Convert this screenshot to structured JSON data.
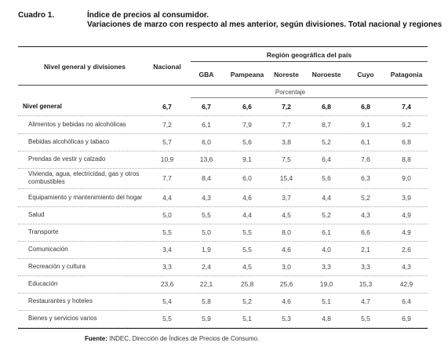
{
  "cuadro": "Cuadro 1.",
  "title_line1": "Índice de precios al consumidor.",
  "title_line2": "Variaciones de marzo con respecto al mes anterior, según divisiones. Total nacional y regiones",
  "header": {
    "divisions": "Nivel general y divisiones",
    "nacional": "Nacional",
    "region_group": "Región geográfica del país",
    "regions": [
      "GBA",
      "Pampeana",
      "Noreste",
      "Noroeste",
      "Cuyo",
      "Patagonia"
    ],
    "unit": "Porcentaje"
  },
  "rows": [
    {
      "label": "Nivel general",
      "values": [
        "6,7",
        "6,7",
        "6,6",
        "7,2",
        "6,8",
        "6,8",
        "7,4"
      ]
    },
    {
      "label": "Alimentos y bebidas no alcohólicas",
      "values": [
        "7,2",
        "6,1",
        "7,9",
        "7,7",
        "8,7",
        "9,1",
        "9,2"
      ]
    },
    {
      "label": "Bebidas alcohólicas y tabaco",
      "values": [
        "5,7",
        "6,0",
        "5,6",
        "3,8",
        "5,2",
        "6,1",
        "6,8"
      ]
    },
    {
      "label": "Prendas de vestir y calzado",
      "values": [
        "10,9",
        "13,6",
        "9,1",
        "7,5",
        "6,4",
        "7,6",
        "8,8"
      ]
    },
    {
      "label": "Vivienda, agua, electricidad, gas y otros combustibles",
      "values": [
        "7,7",
        "8,4",
        "6,0",
        "15,4",
        "5,6",
        "6,3",
        "9,0"
      ]
    },
    {
      "label": "Equipamiento y mantenimiento del hogar",
      "values": [
        "4,4",
        "4,3",
        "4,6",
        "3,7",
        "4,4",
        "5,2",
        "3,9"
      ]
    },
    {
      "label": "Salud",
      "values": [
        "5,0",
        "5,5",
        "4,4",
        "4,5",
        "5,2",
        "4,3",
        "4,9"
      ]
    },
    {
      "label": "Transporte",
      "values": [
        "5,5",
        "5,0",
        "5,5",
        "8,0",
        "6,1",
        "6,6",
        "4,9"
      ]
    },
    {
      "label": "Comunicación",
      "values": [
        "3,4",
        "1,9",
        "5,5",
        "4,6",
        "4,0",
        "2,1",
        "2,6"
      ]
    },
    {
      "label": "Recreación y cultura",
      "values": [
        "3,3",
        "2,4",
        "4,5",
        "3,0",
        "3,3",
        "3,3",
        "4,3"
      ]
    },
    {
      "label": "Educación",
      "values": [
        "23,6",
        "22,1",
        "25,8",
        "25,6",
        "19,0",
        "15,3",
        "42,9"
      ]
    },
    {
      "label": "Restaurantes y hoteles",
      "values": [
        "5,4",
        "5,8",
        "5,2",
        "4,6",
        "5,1",
        "4,7",
        "6,4"
      ]
    },
    {
      "label": "Bienes y servicios varios",
      "values": [
        "5,5",
        "5,9",
        "5,1",
        "5,3",
        "4,8",
        "5,5",
        "6,9"
      ]
    }
  ],
  "source": {
    "label": "Fuente:",
    "text": " INDEC, Dirección de Índices de Precios de Consumo."
  }
}
